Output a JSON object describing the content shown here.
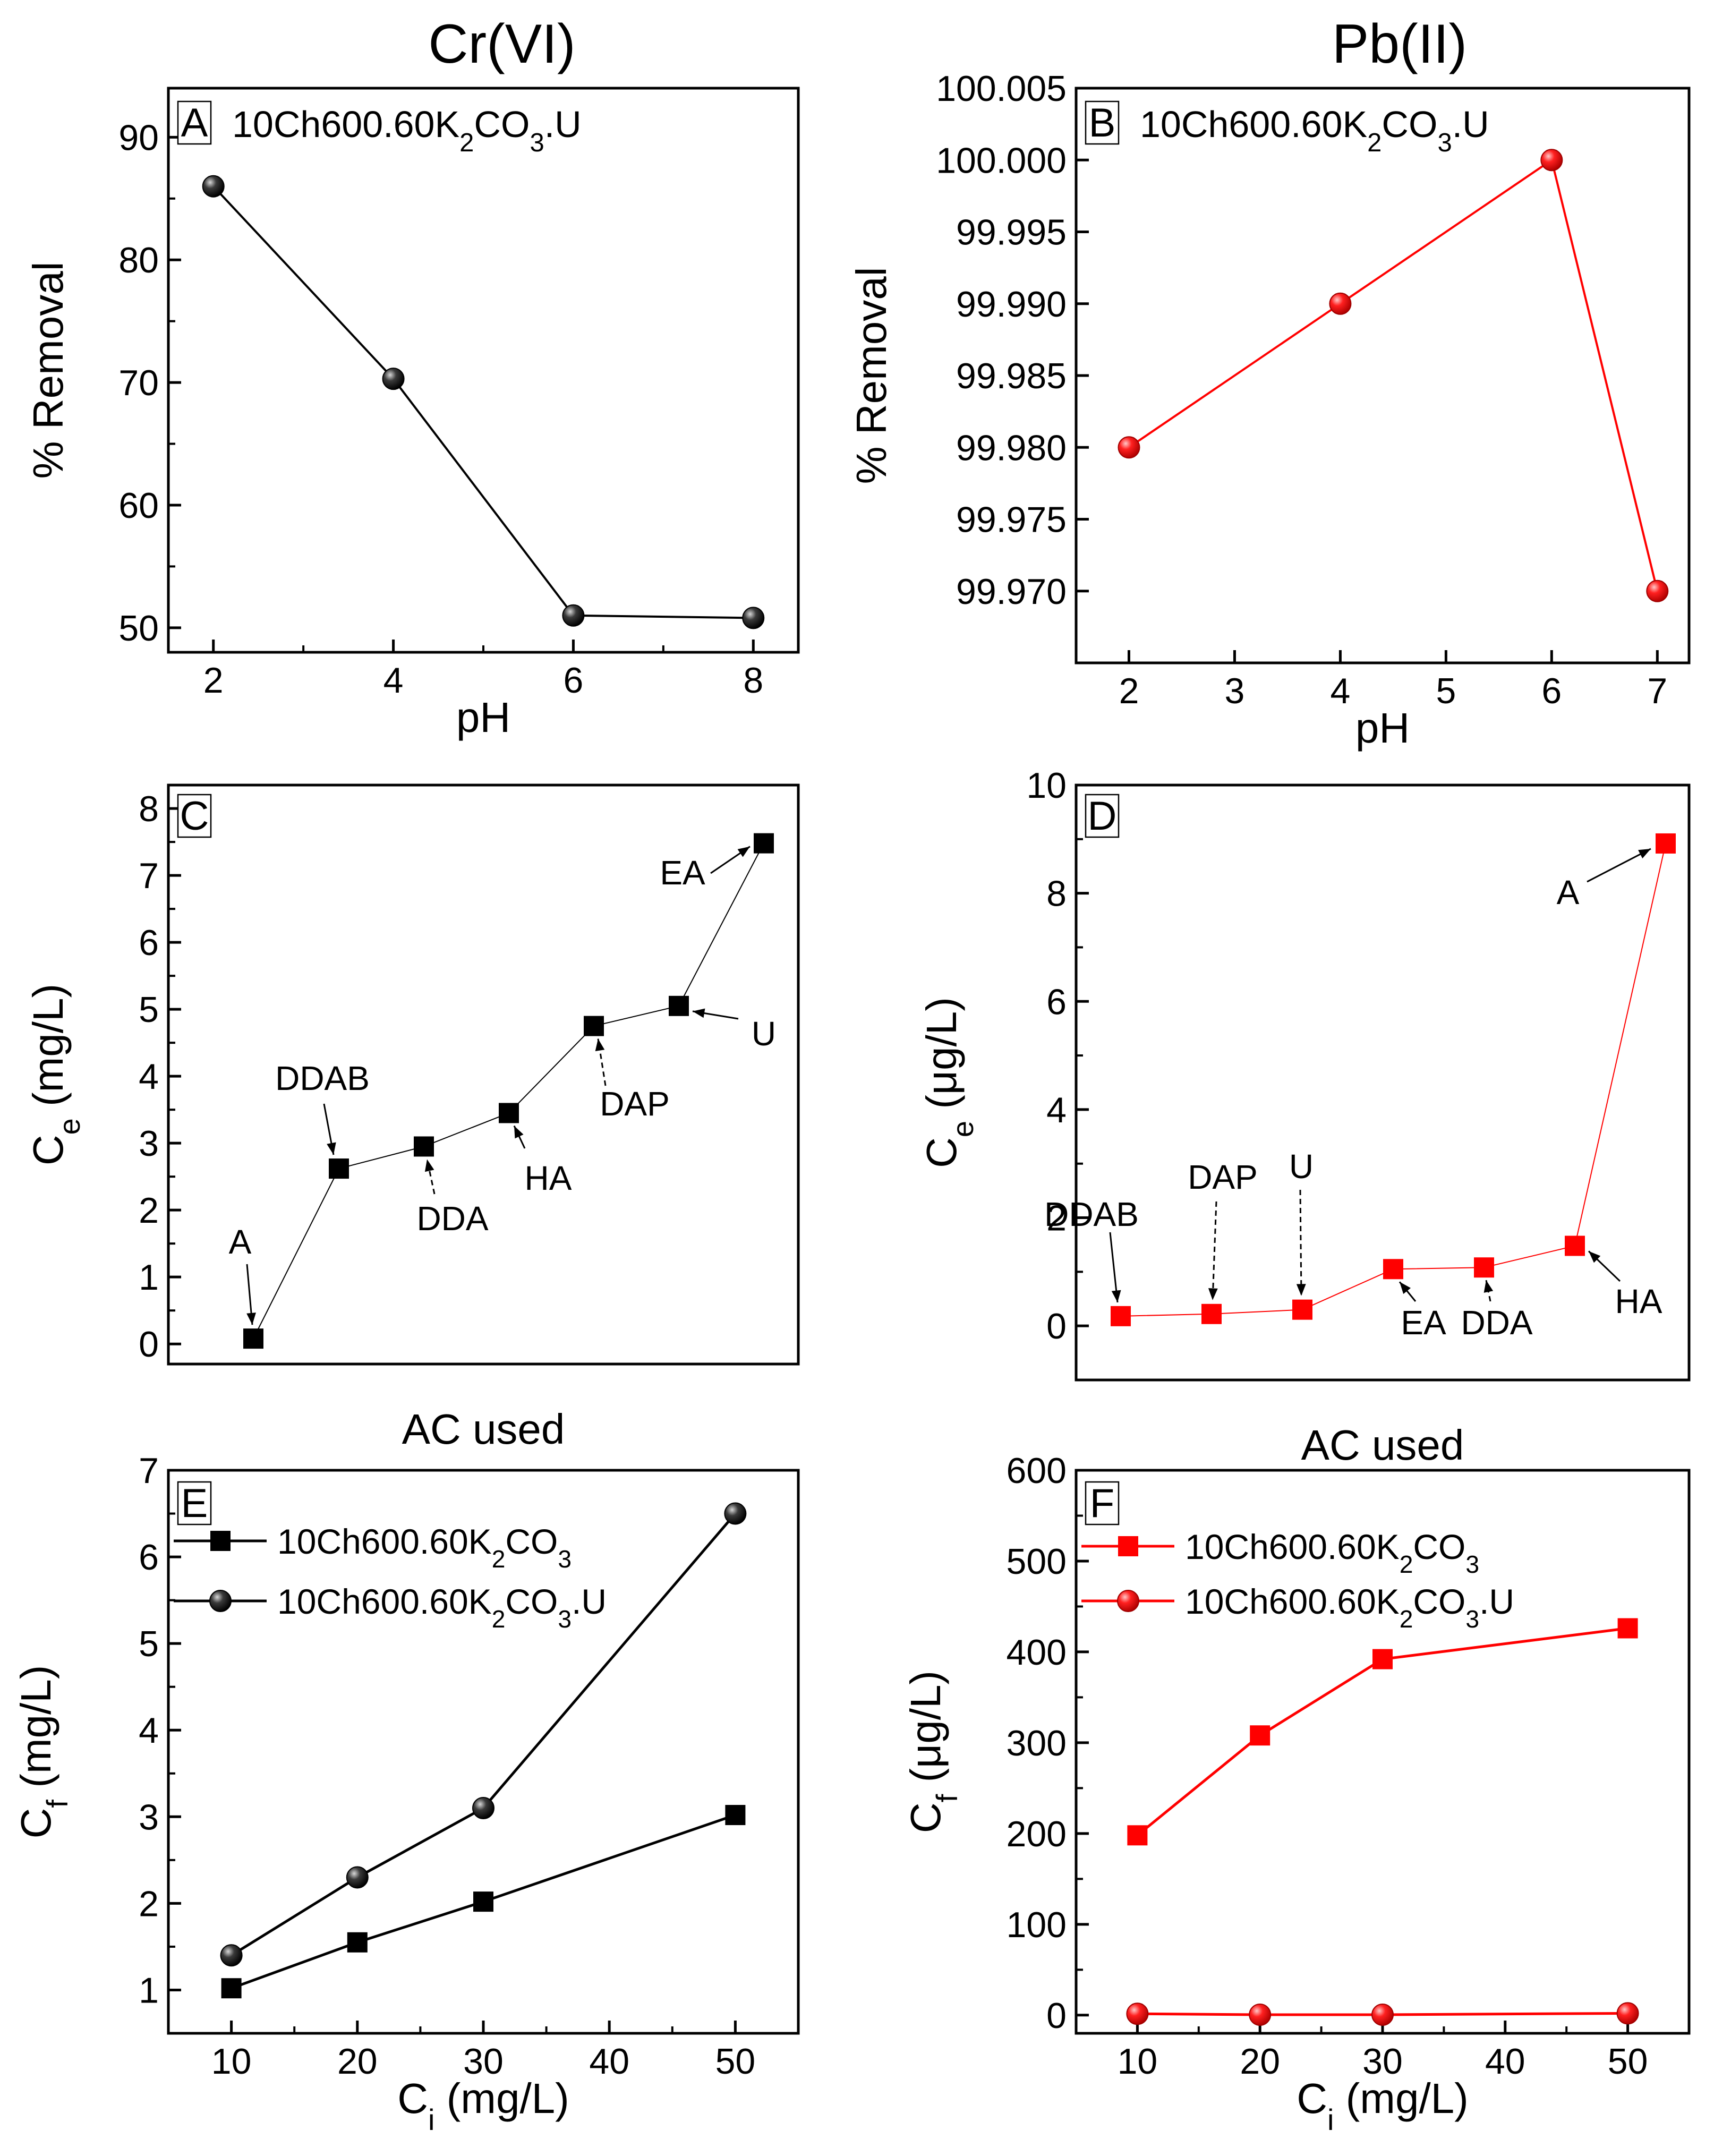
{
  "figure": {
    "column_titles": [
      "Cr(VI)",
      "Pb(II)"
    ]
  },
  "chart_data": [
    {
      "panel": "A",
      "type": "line",
      "color": "#000000",
      "marker": "sphere",
      "title": "10Ch600.60K2CO3.U",
      "xlabel": "pH",
      "ylabel": "% Removal",
      "x_categories": [
        "2",
        "4",
        "6",
        "8"
      ],
      "xlim": [
        1.5,
        8.5
      ],
      "ylim": [
        48,
        94
      ],
      "xticks": [
        "2",
        "4",
        "6",
        "8"
      ],
      "yticks": [
        "50",
        "60",
        "70",
        "80",
        "90"
      ],
      "series": [
        {
          "name": "10Ch600.60K2CO3.U",
          "x": [
            2,
            4,
            6,
            8
          ],
          "y": [
            86.0,
            70.3,
            51.0,
            50.8
          ]
        }
      ]
    },
    {
      "panel": "B",
      "type": "line",
      "color": "#ff0000",
      "marker": "sphere",
      "title": "10Ch600.60K2CO3.U",
      "xlabel": "pH",
      "ylabel": "% Removal",
      "xlim": [
        1.5,
        7.3
      ],
      "ylim": [
        99.965,
        100.005
      ],
      "xticks": [
        "2",
        "3",
        "4",
        "5",
        "6",
        "7"
      ],
      "yticks": [
        "99.970",
        "99.975",
        "99.980",
        "99.985",
        "99.990",
        "99.995",
        "100.000",
        "100.005"
      ],
      "series": [
        {
          "name": "10Ch600.60K2CO3.U",
          "x": [
            2,
            4,
            6,
            7
          ],
          "y": [
            99.98,
            99.99,
            100.0,
            99.97
          ]
        }
      ]
    },
    {
      "panel": "C",
      "type": "line",
      "color": "#000000",
      "marker": "square",
      "xlabel": "AC used",
      "ylabel": "Ce (mg/L)",
      "ylim": [
        -0.3,
        8.35
      ],
      "yticks": [
        "0",
        "1",
        "2",
        "3",
        "4",
        "5",
        "6",
        "7",
        "8"
      ],
      "categories": [
        "A",
        "DDAB",
        "DDA",
        "HA",
        "DAP",
        "U",
        "EA"
      ],
      "values": [
        0.08,
        2.62,
        2.95,
        3.45,
        4.75,
        5.05,
        7.48
      ]
    },
    {
      "panel": "D",
      "type": "line",
      "color": "#ff0000",
      "marker": "square",
      "xlabel": "AC used",
      "ylabel": "Ce (μg/L)",
      "ylim": [
        -1.0,
        10.0
      ],
      "yticks": [
        "0",
        "2",
        "4",
        "6",
        "8",
        "10"
      ],
      "categories": [
        "DDAB",
        "DAP",
        "U",
        "EA",
        "DDA",
        "HA",
        "A"
      ],
      "values": [
        0.18,
        0.22,
        0.3,
        1.05,
        1.08,
        1.48,
        8.92
      ]
    },
    {
      "panel": "E",
      "type": "line",
      "color": "#000000",
      "xlabel": "Ci (mg/L)",
      "ylabel": "Cf (mg/L)",
      "xlim": [
        5,
        55
      ],
      "ylim": [
        0.5,
        7.0
      ],
      "xticks": [
        "10",
        "20",
        "30",
        "40",
        "50"
      ],
      "yticks": [
        "1",
        "2",
        "3",
        "4",
        "5",
        "6",
        "7"
      ],
      "series": [
        {
          "name": "10Ch600.60K2CO3",
          "marker": "square",
          "x": [
            10,
            20,
            30,
            50
          ],
          "y": [
            1.02,
            1.55,
            2.02,
            3.02
          ]
        },
        {
          "name": "10Ch600.60K2CO3.U",
          "marker": "sphere",
          "x": [
            10,
            20,
            30,
            50
          ],
          "y": [
            1.4,
            2.3,
            3.1,
            6.5
          ]
        }
      ]
    },
    {
      "panel": "F",
      "type": "line",
      "color": "#ff0000",
      "xlabel": "Ci (mg/L)",
      "ylabel": "Cf (μg/L)",
      "xlim": [
        5,
        55
      ],
      "ylim": [
        -20,
        600
      ],
      "xticks": [
        "10",
        "20",
        "30",
        "40",
        "50"
      ],
      "yticks": [
        "0",
        "100",
        "200",
        "300",
        "400",
        "500",
        "600"
      ],
      "series": [
        {
          "name": "10Ch600.60K2CO3",
          "marker": "square",
          "x": [
            10,
            20,
            30,
            50
          ],
          "y": [
            198,
            308,
            392,
            426
          ]
        },
        {
          "name": "10Ch600.60K2CO3.U",
          "marker": "sphere",
          "x": [
            10,
            20,
            30,
            50
          ],
          "y": [
            1.5,
            0.5,
            0.5,
            2.0
          ]
        }
      ]
    }
  ]
}
